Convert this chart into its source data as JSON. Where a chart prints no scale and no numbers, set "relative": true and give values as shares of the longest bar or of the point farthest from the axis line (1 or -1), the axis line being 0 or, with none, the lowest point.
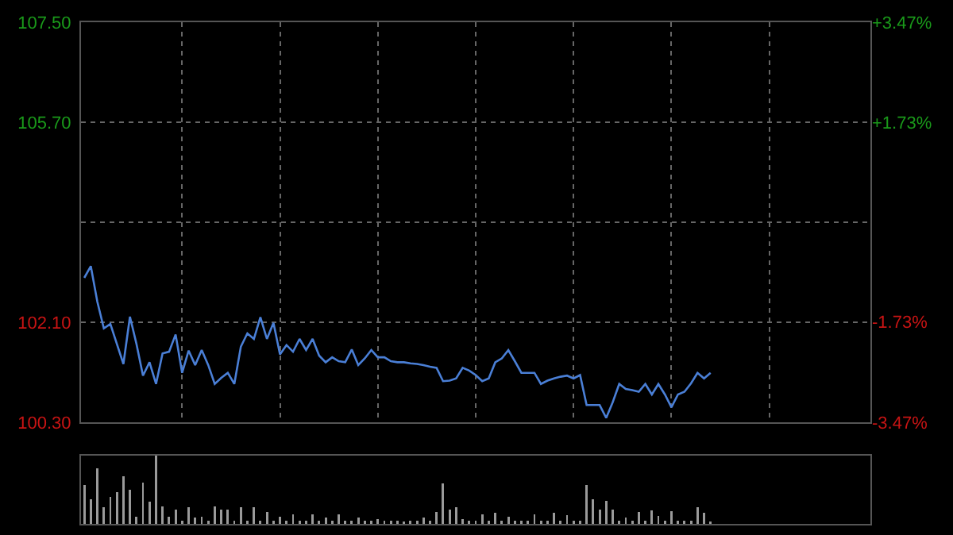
{
  "chart_data": [
    {
      "type": "line",
      "categories": [
        null,
        null,
        null,
        null,
        null,
        null,
        null,
        null,
        null,
        null,
        null,
        null,
        null,
        null,
        null,
        null,
        null,
        null,
        null,
        null,
        null,
        null,
        null,
        null,
        null,
        null,
        null,
        null,
        null,
        null,
        null,
        null,
        null,
        null,
        null,
        null,
        null,
        null,
        null,
        null,
        null,
        null,
        null,
        null,
        null,
        null,
        null,
        null,
        null,
        null,
        null,
        null,
        null,
        null,
        null,
        null,
        null,
        null,
        null,
        null,
        null,
        null,
        null,
        null,
        null,
        null,
        null,
        null,
        null,
        null,
        null,
        null,
        null,
        null,
        null,
        null,
        null,
        null,
        null,
        null,
        null,
        null,
        null,
        null,
        null,
        null,
        null,
        null,
        null,
        null,
        null,
        null,
        null,
        null,
        null,
        null,
        null,
        null,
        null,
        null,
        null,
        null,
        null,
        null,
        null,
        null,
        null,
        null,
        null,
        null,
        null,
        null,
        null,
        null,
        null,
        null,
        null,
        null,
        null,
        null,
        null
      ],
      "ylim": [
        100.3,
        107.5
      ],
      "yticks": [
        {
          "value": 100.3,
          "label": "100.30"
        },
        {
          "value": 102.1,
          "label": "102.10"
        },
        {
          "value": 103.9,
          "label": null
        },
        {
          "value": 105.7,
          "label": "105.70"
        },
        {
          "value": 107.5,
          "label": "107.50"
        }
      ],
      "y2lim": [
        -3.47,
        3.47
      ],
      "y2ticks": [
        {
          "value": -3.47,
          "label": "-3.47%"
        },
        {
          "value": -1.73,
          "label": "-1.73%"
        },
        {
          "value": 1.73,
          "label": "+1.73%"
        },
        {
          "value": 3.47,
          "label": "+3.47%"
        }
      ],
      "tick_labels": "y",
      "grid": true,
      "series": [
        {
          "color": "#4a7fd6",
          "values": [
            102.9,
            103.11,
            102.47,
            101.99,
            102.07,
            101.71,
            101.35,
            102.2,
            101.71,
            101.14,
            101.38,
            100.99,
            101.54,
            101.57,
            101.88,
            101.19,
            101.59,
            101.33,
            101.6,
            101.33,
            100.99,
            101.1,
            101.19,
            100.99,
            101.66,
            101.9,
            101.8,
            102.19,
            101.8,
            102.09,
            101.52,
            101.69,
            101.57,
            101.8,
            101.6,
            101.8,
            101.5,
            101.38,
            101.47,
            101.4,
            101.38,
            101.61,
            101.33,
            101.45,
            101.6,
            101.47,
            101.47,
            101.4,
            101.38,
            101.38,
            101.36,
            101.35,
            101.33,
            101.3,
            101.28,
            101.04,
            101.05,
            101.09,
            101.28,
            101.23,
            101.15,
            101.04,
            101.09,
            101.38,
            101.45,
            101.6,
            101.4,
            101.19,
            101.19,
            101.19,
            100.99,
            101.05,
            101.09,
            101.12,
            101.14,
            101.09,
            101.15,
            100.61,
            100.61,
            100.61,
            100.38,
            100.66,
            100.99,
            100.9,
            100.88,
            100.85,
            100.99,
            100.8,
            100.99,
            100.8,
            100.57,
            100.8,
            100.85,
            101.0,
            101.19,
            101.09,
            101.19,
            null,
            null,
            null,
            null,
            null,
            null,
            null,
            null,
            null,
            null,
            null,
            null,
            null,
            null,
            null,
            null,
            null,
            null,
            null,
            null,
            null,
            null,
            null,
            null
          ]
        }
      ]
    },
    {
      "type": "bar",
      "relative": true,
      "categories": [
        null,
        null,
        null,
        null,
        null,
        null,
        null,
        null,
        null,
        null,
        null,
        null,
        null,
        null,
        null,
        null,
        null,
        null,
        null,
        null,
        null,
        null,
        null,
        null,
        null,
        null,
        null,
        null,
        null,
        null,
        null,
        null,
        null,
        null,
        null,
        null,
        null,
        null,
        null,
        null,
        null,
        null,
        null,
        null,
        null,
        null,
        null,
        null,
        null,
        null,
        null,
        null,
        null,
        null,
        null,
        null,
        null,
        null,
        null,
        null,
        null,
        null,
        null,
        null,
        null,
        null,
        null,
        null,
        null,
        null,
        null,
        null,
        null,
        null,
        null,
        null,
        null,
        null,
        null,
        null,
        null,
        null,
        null,
        null,
        null,
        null,
        null,
        null,
        null,
        null,
        null,
        null,
        null,
        null,
        null,
        null,
        null,
        null,
        null,
        null,
        null,
        null,
        null,
        null,
        null,
        null,
        null,
        null,
        null,
        null,
        null,
        null,
        null,
        null,
        null,
        null,
        null,
        null,
        null,
        null,
        null
      ],
      "tick_labels": false,
      "series": [
        {
          "color": "#9a9a9a",
          "values": [
            0.57,
            0.36,
            0.81,
            0.25,
            0.39,
            0.46,
            0.7,
            0.5,
            0.11,
            0.61,
            0.32,
            1,
            0.26,
            0.11,
            0.21,
            0.05,
            0.25,
            0.09,
            0.11,
            0.05,
            0.26,
            0.21,
            0.21,
            0.05,
            0.24,
            0.05,
            0.24,
            0.05,
            0.18,
            0.05,
            0.11,
            0.05,
            0.14,
            0.05,
            0.05,
            0.14,
            0.05,
            0.09,
            0.05,
            0.14,
            0.05,
            0.05,
            0.09,
            0.05,
            0.05,
            0.07,
            0.05,
            0.05,
            0.05,
            0.04,
            0.05,
            0.05,
            0.09,
            0.05,
            0.18,
            0.59,
            0.21,
            0.24,
            0.07,
            0.05,
            0.05,
            0.14,
            0.05,
            0.16,
            0.05,
            0.11,
            0.05,
            0.05,
            0.05,
            0.14,
            0.05,
            0.05,
            0.16,
            0.05,
            0.13,
            0.05,
            0.05,
            0.57,
            0.36,
            0.21,
            0.34,
            0.21,
            0.05,
            0.09,
            0.05,
            0.18,
            0.05,
            0.2,
            0.12,
            0.05,
            0.19,
            0.05,
            0.05,
            0.05,
            0.24,
            0.16,
            0.04,
            null,
            null,
            null,
            null,
            null,
            null,
            null,
            null,
            null,
            null,
            null,
            null,
            null,
            null,
            null,
            null,
            null,
            null,
            null,
            null,
            null,
            null,
            null,
            null
          ]
        }
      ]
    }
  ]
}
